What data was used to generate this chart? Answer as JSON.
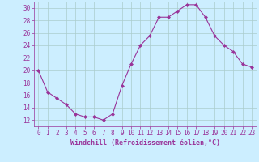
{
  "x": [
    0,
    1,
    2,
    3,
    4,
    5,
    6,
    7,
    8,
    9,
    10,
    11,
    12,
    13,
    14,
    15,
    16,
    17,
    18,
    19,
    20,
    21,
    22,
    23
  ],
  "y": [
    20,
    16.5,
    15.5,
    14.5,
    13,
    12.5,
    12.5,
    12,
    13,
    17.5,
    21,
    24,
    25.5,
    28.5,
    28.5,
    29.5,
    30.5,
    30.5,
    28.5,
    25.5,
    24,
    23,
    21,
    20.5
  ],
  "line_color": "#993399",
  "marker": "D",
  "marker_size": 2,
  "xlabel": "Windchill (Refroidissement éolien,°C)",
  "xlim": [
    -0.5,
    23.5
  ],
  "ylim": [
    11,
    31
  ],
  "yticks": [
    12,
    14,
    16,
    18,
    20,
    22,
    24,
    26,
    28,
    30
  ],
  "xticks": [
    0,
    1,
    2,
    3,
    4,
    5,
    6,
    7,
    8,
    9,
    10,
    11,
    12,
    13,
    14,
    15,
    16,
    17,
    18,
    19,
    20,
    21,
    22,
    23
  ],
  "grid_color": "#aacccc",
  "bg_color": "#cceeff",
  "tick_color": "#993399",
  "label_color": "#993399",
  "font_family": "monospace",
  "xlabel_fontsize": 6,
  "tick_fontsize": 5.5
}
